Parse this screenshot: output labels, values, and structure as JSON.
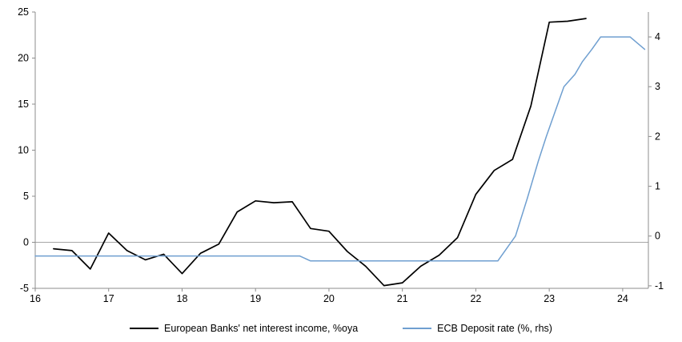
{
  "chart_data": {
    "type": "line",
    "title": "",
    "xlabel": "",
    "ylabel_left": "",
    "ylabel_right": "",
    "xlim": [
      16,
      24.35
    ],
    "x_ticks": [
      16,
      17,
      18,
      19,
      20,
      21,
      22,
      23,
      24
    ],
    "left_axis": {
      "lim": [
        -5,
        25
      ],
      "ticks": [
        -5,
        0,
        5,
        10,
        15,
        20,
        25
      ]
    },
    "right_axis": {
      "lim": [
        -1.05,
        4.5
      ],
      "ticks": [
        -1,
        0,
        1,
        2,
        3,
        4
      ]
    },
    "grid": "zero-line-only",
    "legend_position": "bottom-center",
    "axis_color": "#8c8c8c",
    "zero_line_color": "#a6a6a6",
    "series": [
      {
        "name": "European Banks' net interest income, %oya",
        "axis": "left",
        "color": "#000000",
        "width": 1.7,
        "points": [
          [
            16.25,
            -0.7
          ],
          [
            16.5,
            -0.9
          ],
          [
            16.75,
            -2.9
          ],
          [
            17.0,
            1.0
          ],
          [
            17.25,
            -0.9
          ],
          [
            17.5,
            -1.9
          ],
          [
            17.75,
            -1.3
          ],
          [
            18.0,
            -3.4
          ],
          [
            18.25,
            -1.2
          ],
          [
            18.5,
            -0.2
          ],
          [
            18.75,
            3.3
          ],
          [
            19.0,
            4.5
          ],
          [
            19.25,
            4.3
          ],
          [
            19.5,
            4.4
          ],
          [
            19.75,
            1.5
          ],
          [
            20.0,
            1.2
          ],
          [
            20.25,
            -1.0
          ],
          [
            20.5,
            -2.6
          ],
          [
            20.75,
            -4.7
          ],
          [
            21.0,
            -4.4
          ],
          [
            21.25,
            -2.6
          ],
          [
            21.5,
            -1.4
          ],
          [
            21.75,
            0.5
          ],
          [
            22.0,
            5.2
          ],
          [
            22.25,
            7.8
          ],
          [
            22.5,
            9.0
          ],
          [
            22.75,
            14.8
          ],
          [
            23.0,
            23.9
          ],
          [
            23.25,
            24.0
          ],
          [
            23.5,
            24.3
          ]
        ]
      },
      {
        "name": "ECB Deposit rate (%, rhs)",
        "axis": "right",
        "color": "#6f9fd0",
        "width": 1.5,
        "points": [
          [
            16.0,
            -0.4
          ],
          [
            19.6,
            -0.4
          ],
          [
            19.75,
            -0.5
          ],
          [
            22.3,
            -0.5
          ],
          [
            22.54,
            0.0
          ],
          [
            22.7,
            0.75
          ],
          [
            22.85,
            1.5
          ],
          [
            22.96,
            2.0
          ],
          [
            23.08,
            2.5
          ],
          [
            23.2,
            3.0
          ],
          [
            23.35,
            3.25
          ],
          [
            23.45,
            3.5
          ],
          [
            23.58,
            3.75
          ],
          [
            23.7,
            4.0
          ],
          [
            24.1,
            4.0
          ],
          [
            24.3,
            3.75
          ]
        ]
      }
    ]
  },
  "legend": {
    "item1": "European Banks' net interest income, %oya",
    "item2": "ECB Deposit rate (%, rhs)"
  }
}
